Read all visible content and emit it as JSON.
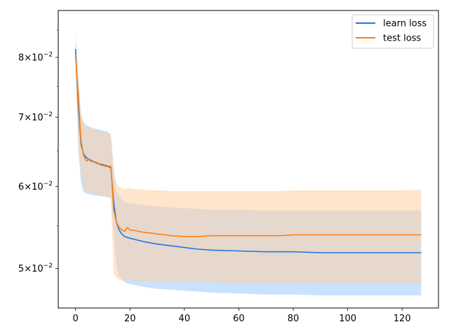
{
  "chart_data": {
    "type": "line",
    "title": "",
    "xlabel": "",
    "ylabel": "",
    "yscale": "log",
    "xlim": [
      -6.35,
      133.35
    ],
    "ylim": [
      0.0458,
      0.0888
    ],
    "grid": false,
    "legend": {
      "position": "top-right"
    },
    "x_ticks": [
      {
        "value": 0,
        "label": "0"
      },
      {
        "value": 20,
        "label": "20"
      },
      {
        "value": 40,
        "label": "40"
      },
      {
        "value": 60,
        "label": "60"
      },
      {
        "value": 80,
        "label": "80"
      },
      {
        "value": 100,
        "label": "100"
      },
      {
        "value": 120,
        "label": "120"
      }
    ],
    "y_ticks": [
      {
        "value": 0.05,
        "mantissa": "5",
        "exponent": "−2"
      },
      {
        "value": 0.06,
        "mantissa": "6",
        "exponent": "−2"
      },
      {
        "value": 0.07,
        "mantissa": "7",
        "exponent": "−2"
      },
      {
        "value": 0.08,
        "mantissa": "8",
        "exponent": "−2"
      }
    ],
    "series": [
      {
        "name": "learn loss",
        "color": "#1f77e4",
        "band_color": "#aad4ff",
        "x": [
          0,
          1,
          2,
          3,
          4,
          5,
          6,
          8,
          10,
          12,
          13,
          14,
          15,
          16,
          17,
          18,
          20,
          25,
          30,
          35,
          40,
          45,
          50,
          60,
          70,
          80,
          90,
          100,
          110,
          120,
          127
        ],
        "y": [
          0.0815,
          0.072,
          0.066,
          0.0645,
          0.064,
          0.0637,
          0.0635,
          0.0632,
          0.063,
          0.0628,
          0.0625,
          0.058,
          0.0555,
          0.0545,
          0.054,
          0.0537,
          0.0535,
          0.0531,
          0.0528,
          0.0526,
          0.0524,
          0.0522,
          0.0521,
          0.052,
          0.0519,
          0.0519,
          0.0518,
          0.0518,
          0.0518,
          0.0518,
          0.0518
        ],
        "lower": [
          0.0795,
          0.0655,
          0.0605,
          0.0593,
          0.0591,
          0.059,
          0.0589,
          0.0588,
          0.0587,
          0.0586,
          0.0585,
          0.0545,
          0.0505,
          0.0492,
          0.0488,
          0.0485,
          0.0483,
          0.048,
          0.0478,
          0.0477,
          0.0476,
          0.0475,
          0.0474,
          0.0473,
          0.0472,
          0.0472,
          0.0471,
          0.0471,
          0.0471,
          0.0471,
          0.0471
        ],
        "upper": [
          0.0842,
          0.077,
          0.0705,
          0.0692,
          0.0688,
          0.0686,
          0.0684,
          0.0682,
          0.068,
          0.0678,
          0.0672,
          0.062,
          0.0595,
          0.0588,
          0.0583,
          0.058,
          0.0578,
          0.0576,
          0.0574,
          0.0573,
          0.0572,
          0.0571,
          0.057,
          0.057,
          0.0569,
          0.0569,
          0.0569,
          0.0569,
          0.0569,
          0.0569,
          0.0569
        ]
      },
      {
        "name": "test loss",
        "color": "#ff7f0e",
        "band_color": "#ffcfa3",
        "x": [
          0,
          1,
          2,
          3,
          4,
          5,
          6,
          7,
          8,
          9,
          10,
          11,
          12,
          13,
          14,
          15,
          16,
          17,
          18,
          19,
          20,
          22,
          25,
          28,
          30,
          33,
          35,
          40,
          45,
          50,
          55,
          60,
          65,
          70,
          75,
          80,
          90,
          100,
          110,
          120,
          127
        ],
        "y": [
          0.0805,
          0.0735,
          0.0665,
          0.0643,
          0.0635,
          0.0638,
          0.0636,
          0.0634,
          0.0633,
          0.063,
          0.0629,
          0.0628,
          0.0627,
          0.0628,
          0.057,
          0.0555,
          0.0548,
          0.0545,
          0.0543,
          0.0548,
          0.0545,
          0.0544,
          0.0542,
          0.0541,
          0.054,
          0.0539,
          0.0538,
          0.0537,
          0.0537,
          0.0538,
          0.0538,
          0.0538,
          0.0538,
          0.0538,
          0.0538,
          0.0539,
          0.0539,
          0.0539,
          0.0539,
          0.0539,
          0.0539
        ],
        "lower": [
          0.078,
          0.0655,
          0.0615,
          0.0598,
          0.0592,
          0.0593,
          0.0592,
          0.0591,
          0.059,
          0.0589,
          0.0588,
          0.0587,
          0.0586,
          0.0586,
          0.0495,
          0.049,
          0.0488,
          0.0487,
          0.0486,
          0.0487,
          0.0487,
          0.0486,
          0.0486,
          0.0486,
          0.0485,
          0.0485,
          0.0485,
          0.0485,
          0.0485,
          0.0485,
          0.0484,
          0.0484,
          0.0484,
          0.0484,
          0.0484,
          0.0484,
          0.0484,
          0.0484,
          0.0484,
          0.0484,
          0.0484
        ],
        "upper": [
          0.083,
          0.077,
          0.0705,
          0.069,
          0.0685,
          0.0685,
          0.0683,
          0.0682,
          0.0681,
          0.068,
          0.0678,
          0.0677,
          0.0676,
          0.0675,
          0.0625,
          0.0605,
          0.06,
          0.0598,
          0.0597,
          0.0598,
          0.0598,
          0.0597,
          0.0596,
          0.0595,
          0.0595,
          0.0595,
          0.0594,
          0.0594,
          0.0594,
          0.0594,
          0.0594,
          0.0594,
          0.0594,
          0.0594,
          0.0594,
          0.0595,
          0.0595,
          0.0595,
          0.0595,
          0.0595,
          0.0596
        ]
      }
    ]
  }
}
